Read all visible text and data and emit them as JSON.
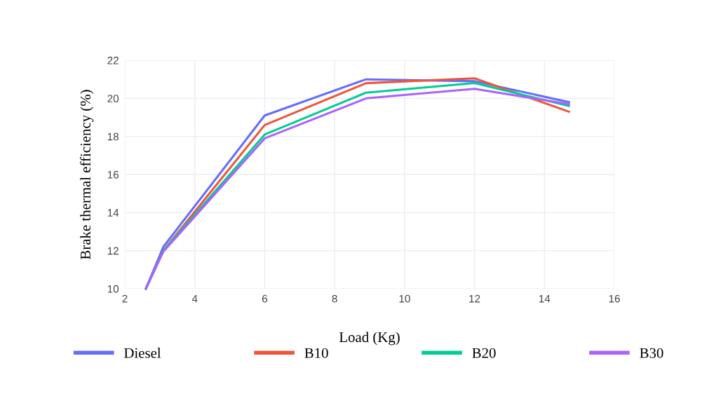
{
  "chart_data": {
    "type": "line",
    "xlabel": "Load (Kg)",
    "ylabel": "Brake thermal efficiency (%)",
    "xlim": [
      2,
      16
    ],
    "xticks": [
      2,
      4,
      6,
      8,
      10,
      12,
      14,
      16
    ],
    "ylim": [
      10,
      22
    ],
    "yticks": [
      10,
      12,
      14,
      16,
      18,
      20,
      22
    ],
    "grid": true,
    "legend": "bottom",
    "marker": "none",
    "line_style": "solid",
    "x": [
      2.6,
      3.1,
      6.0,
      8.9,
      12.0,
      14.7
    ],
    "series": [
      {
        "name": "Diesel",
        "color": "#636efa",
        "values": [
          10.0,
          12.2,
          19.1,
          21.0,
          20.9,
          19.8
        ]
      },
      {
        "name": "B10",
        "color": "#ef553b",
        "values": [
          10.0,
          12.0,
          18.6,
          20.8,
          21.05,
          19.3
        ]
      },
      {
        "name": "B20",
        "color": "#00cc96",
        "values": [
          10.0,
          12.0,
          18.1,
          20.3,
          20.8,
          19.6
        ]
      },
      {
        "name": "B30",
        "color": "#ab63fa",
        "values": [
          10.0,
          11.95,
          17.9,
          20.0,
          20.5,
          19.7
        ]
      }
    ]
  }
}
